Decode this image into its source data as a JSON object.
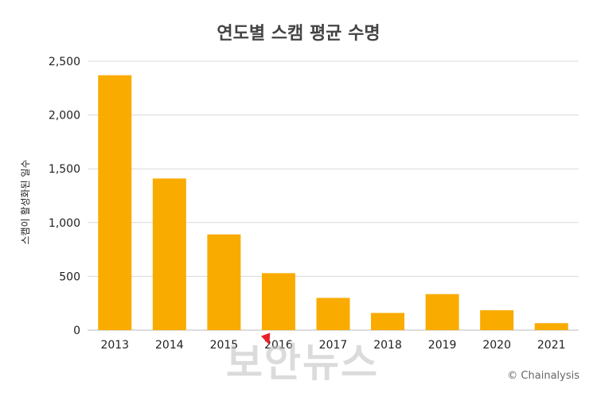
{
  "chart_data": {
    "type": "bar",
    "title": "연도별 스캠 평균 수명",
    "xlabel": "",
    "ylabel": "스캠이 활성화된 일수",
    "categories": [
      "2013",
      "2014",
      "2015",
      "2016",
      "2017",
      "2018",
      "2019",
      "2020",
      "2021"
    ],
    "values": [
      2370,
      1410,
      890,
      530,
      300,
      160,
      335,
      185,
      65
    ],
    "ylim": [
      0,
      2500
    ],
    "yticks": [
      0,
      500,
      1000,
      1500,
      2000,
      2500
    ],
    "ytick_labels": [
      "0",
      "500",
      "1,000",
      "1,500",
      "2,000",
      "2,500"
    ],
    "grid": true,
    "bar_color": "#f9ab00",
    "grid_color": "#d9d9d9"
  },
  "credit": "© Chainalysis",
  "watermark": "보안뉴스"
}
